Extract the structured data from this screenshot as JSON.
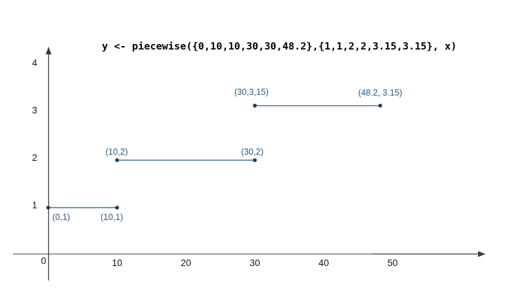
{
  "chart_data": {
    "type": "line",
    "title": "y <- piecewise({0,10,10,30,30,48.2},{1,1,2,2,3.15,3.15}, x)",
    "xlabel": "",
    "ylabel": "",
    "xlim": [
      0,
      63
    ],
    "ylim": [
      0,
      4.35
    ],
    "grid": false,
    "legend": "none",
    "x_ticks": [
      0,
      10,
      20,
      30,
      40,
      50
    ],
    "y_ticks": [
      1,
      2,
      3,
      4
    ],
    "segments": [
      {
        "x1": 0,
        "y1": 1,
        "x2": 10,
        "y2": 1
      },
      {
        "x1": 10,
        "y1": 2,
        "x2": 30,
        "y2": 2
      },
      {
        "x1": 30,
        "y1": 3.15,
        "x2": 48.2,
        "y2": 3.15
      }
    ],
    "points": [
      {
        "x": 0,
        "y": 1,
        "label": "(0,1)",
        "label_pos": "below-right"
      },
      {
        "x": 10,
        "y": 1,
        "label": "(10,1)",
        "label_pos": "below"
      },
      {
        "x": 10,
        "y": 2,
        "label": "(10,2)",
        "label_pos": "above"
      },
      {
        "x": 30,
        "y": 2,
        "label": "(30,2)",
        "label_pos": "above"
      },
      {
        "x": 30,
        "y": 3.15,
        "label": "(30,3,15)",
        "label_pos": "above-left"
      },
      {
        "x": 48.2,
        "y": 3.15,
        "label": "(48.2, 3.15)",
        "label_pos": "above-left"
      }
    ],
    "colors": {
      "segment_line": "#4d7296",
      "data_point": "#1f3c5f",
      "point_label": "#2b5a7c",
      "axis": "#3d3d3d",
      "x_axis_bar": "#aaaaaa",
      "tick_label": "#141414",
      "title": "#000000"
    }
  }
}
